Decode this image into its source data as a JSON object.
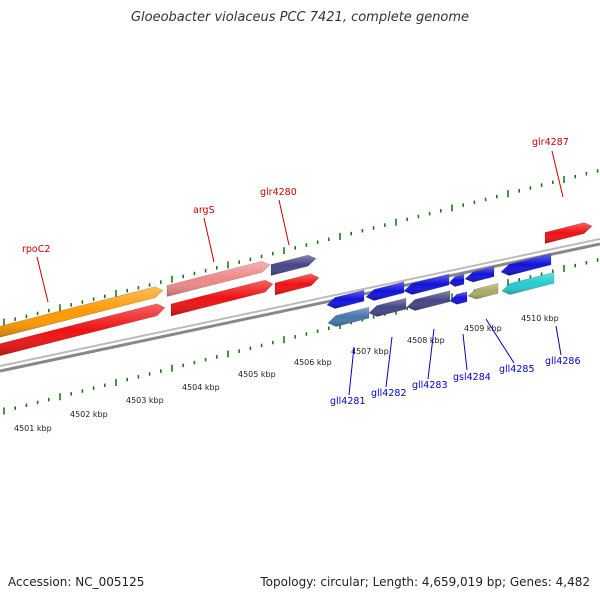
{
  "title": "Gloeobacter violaceus PCC 7421, complete genome",
  "footer": {
    "accession": "Accession: NC_005125",
    "stats": "Topology: circular; Length: 4,659,019 bp; Genes: 4,482"
  },
  "colors": {
    "forward_label": "#cc0000",
    "reverse_label": "#0000cc",
    "tick": "#1a7a1a",
    "backbone": "#888888"
  },
  "tick_labels": [
    "4501 kbp",
    "4502 kbp",
    "4503 kbp",
    "4504 kbp",
    "4505 kbp",
    "4506 kbp",
    "4507 kbp",
    "4508 kbp",
    "4509 kbp",
    "4510 kbp"
  ],
  "forward_genes": [
    {
      "name": "rpoC2",
      "color": "#ff9900"
    },
    {
      "name": "",
      "color": "#ee1111"
    },
    {
      "name": "argS",
      "color": "#ee8888"
    },
    {
      "name": "",
      "color": "#ee1111"
    },
    {
      "name": "glr4280",
      "color": "#444488"
    },
    {
      "name": "",
      "color": "#ee1111"
    },
    {
      "name": "glr4287",
      "color": "#ee1111"
    }
  ],
  "reverse_genes": [
    {
      "name": "gll4281",
      "color": "#1111dd"
    },
    {
      "name": "",
      "color": "#4477aa"
    },
    {
      "name": "",
      "color": "#1111dd"
    },
    {
      "name": "gll4282",
      "color": "#444488"
    },
    {
      "name": "",
      "color": "#1111dd"
    },
    {
      "name": "gll4283",
      "color": "#444488"
    },
    {
      "name": "",
      "color": "#1111dd"
    },
    {
      "name": "gsl4284",
      "color": "#1111dd"
    },
    {
      "name": "",
      "color": "#aaaa66"
    },
    {
      "name": "gll4285",
      "color": "#1111dd"
    },
    {
      "name": "",
      "color": "#1111dd"
    },
    {
      "name": "gll4286",
      "color": "#22cccc"
    }
  ]
}
